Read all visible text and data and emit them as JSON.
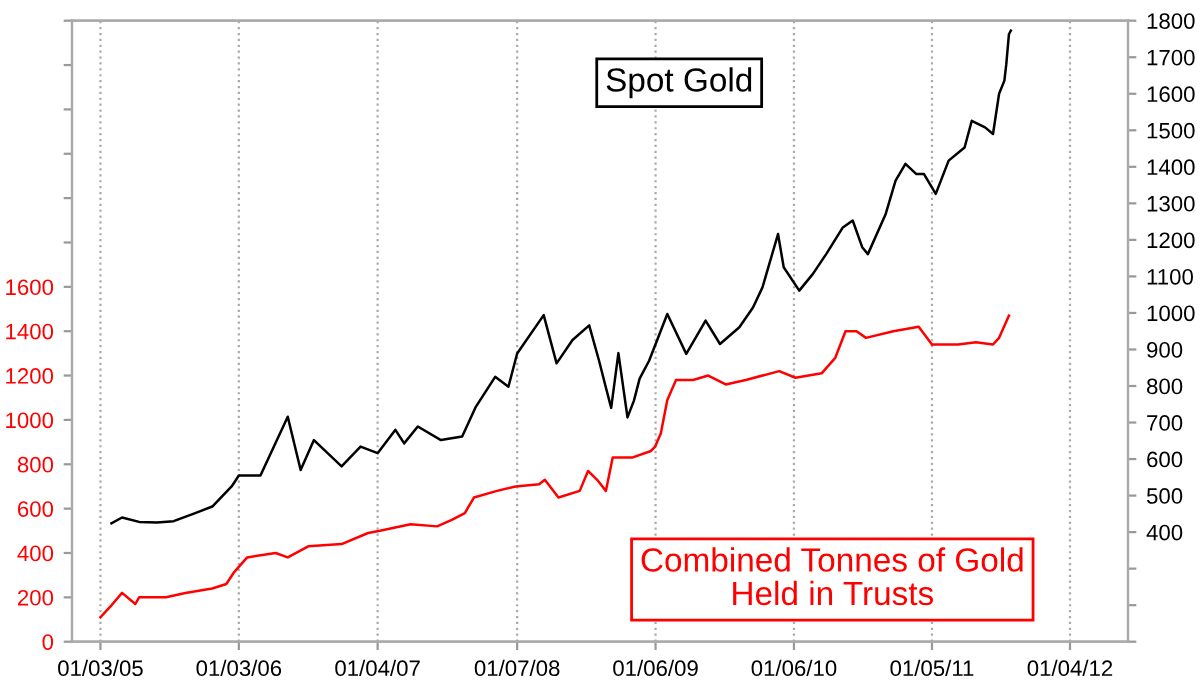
{
  "chart_data": {
    "type": "line",
    "xlim": [
      "2004-10-20",
      "2012-06-05"
    ],
    "xticks": [
      {
        "value": "2005-01-03",
        "label": "01/03/05"
      },
      {
        "value": "2006-01-03",
        "label": "01/03/06"
      },
      {
        "value": "2007-01-04",
        "label": "01/04/07"
      },
      {
        "value": "2008-01-07",
        "label": "01/07/08"
      },
      {
        "value": "2009-01-06",
        "label": "01/06/09"
      },
      {
        "value": "2010-01-06",
        "label": "01/06/10"
      },
      {
        "value": "2011-01-05",
        "label": "01/05/11"
      },
      {
        "value": "2012-01-04",
        "label": "01/04/12"
      }
    ],
    "ylim": [
      0,
      2800
    ],
    "yticks": [
      0,
      200,
      400,
      600,
      800,
      1000,
      1200,
      1400,
      1600,
      {
        "value": 1800,
        "label": null
      },
      {
        "value": 2000,
        "label": null
      },
      {
        "value": 2200,
        "label": null
      },
      {
        "value": 2400,
        "label": null
      },
      {
        "value": 2600,
        "label": null
      },
      {
        "value": 2800,
        "label": null
      }
    ],
    "y2lim": [
      100,
      1800
    ],
    "y2ticks": [
      {
        "value": 100,
        "label": null
      },
      {
        "value": 200,
        "label": null
      },
      {
        "value": 300,
        "label": null
      },
      400,
      500,
      600,
      700,
      800,
      900,
      1000,
      1100,
      1200,
      1300,
      1400,
      1500,
      1600,
      1700,
      1800
    ],
    "grid": "x",
    "marker": "none",
    "line_style": "solid",
    "series": [
      {
        "name": "Spot Gold",
        "color": "#000000",
        "axis": "y2",
        "x": [
          "2005-02-01",
          "2005-03-01",
          "2005-04-15",
          "2005-06-01",
          "2005-07-15",
          "2005-09-10",
          "2005-10-25",
          "2005-12-15",
          "2006-01-03",
          "2006-03-01",
          "2006-05-12",
          "2006-06-15",
          "2006-07-20",
          "2006-10-01",
          "2006-11-20",
          "2007-01-04",
          "2007-02-20",
          "2007-03-15",
          "2007-04-20",
          "2007-06-20",
          "2007-08-15",
          "2007-09-20",
          "2007-11-10",
          "2007-12-15",
          "2008-01-07",
          "2008-03-17",
          "2008-04-20",
          "2008-06-01",
          "2008-07-15",
          "2008-08-10",
          "2008-08-28",
          "2008-09-11",
          "2008-09-30",
          "2008-10-24",
          "2008-11-10",
          "2008-11-25",
          "2008-12-20",
          "2009-02-06",
          "2009-03-28",
          "2009-05-18",
          "2009-06-25",
          "2009-08-15",
          "2009-09-20",
          "2009-10-15",
          "2009-11-25",
          "2009-12-10",
          "2010-01-20",
          "2010-02-25",
          "2010-04-01",
          "2010-05-15",
          "2010-06-10",
          "2010-07-05",
          "2010-07-20",
          "2010-09-05",
          "2010-10-01",
          "2010-10-27",
          "2010-11-25",
          "2010-12-15",
          "2011-01-15",
          "2011-02-18",
          "2011-04-01",
          "2011-04-20",
          "2011-05-25",
          "2011-06-15",
          "2011-07-01",
          "2011-07-15",
          "2011-07-20",
          "2011-07-27",
          "2011-08-01"
        ],
        "values": [
          424,
          440,
          428,
          426,
          430,
          452,
          470,
          525,
          555,
          555,
          716,
          570,
          652,
          580,
          634,
          616,
          680,
          643,
          689,
          652,
          662,
          743,
          825,
          798,
          889,
          994,
          862,
          926,
          966,
          869,
          796,
          740,
          890,
          714,
          760,
          820,
          869,
          997,
          888,
          979,
          915,
          961,
          1015,
          1070,
          1216,
          1125,
          1061,
          1107,
          1161,
          1234,
          1253,
          1180,
          1161,
          1271,
          1362,
          1408,
          1380,
          1380,
          1326,
          1417,
          1453,
          1526,
          1508,
          1490,
          1600,
          1636,
          1681,
          1763,
          1773
        ]
      },
      {
        "name": "Combined Tonnes of Gold\nHeld in Trusts",
        "color": "#ff0000",
        "axis": "y",
        "x": [
          "2005-01-03",
          "2005-01-30",
          "2005-03-01",
          "2005-04-05",
          "2005-04-15",
          "2005-06-25",
          "2005-08-15",
          "2005-10-25",
          "2005-12-01",
          "2005-12-20",
          "2006-01-25",
          "2006-04-10",
          "2006-05-12",
          "2006-07-05",
          "2006-10-01",
          "2006-12-10",
          "2007-01-10",
          "2007-04-01",
          "2007-06-10",
          "2007-07-20",
          "2007-08-22",
          "2007-09-15",
          "2007-11-15",
          "2008-01-03",
          "2008-03-05",
          "2008-03-20",
          "2008-04-25",
          "2008-06-20",
          "2008-07-12",
          "2008-08-05",
          "2008-08-28",
          "2008-09-15",
          "2008-11-05",
          "2008-12-25",
          "2009-01-05",
          "2009-01-20",
          "2009-02-06",
          "2009-03-01",
          "2009-04-15",
          "2009-05-25",
          "2009-07-10",
          "2009-09-01",
          "2009-11-28",
          "2010-01-10",
          "2010-03-20",
          "2010-04-25",
          "2010-05-22",
          "2010-06-20",
          "2010-07-15",
          "2010-09-25",
          "2010-12-01",
          "2011-01-05",
          "2011-03-15",
          "2011-05-01",
          "2011-06-15",
          "2011-07-01",
          "2011-07-27"
        ],
        "values": [
          110,
          160,
          220,
          170,
          200,
          200,
          220,
          240,
          260,
          310,
          380,
          400,
          380,
          430,
          440,
          490,
          500,
          530,
          520,
          550,
          580,
          650,
          680,
          700,
          710,
          730,
          650,
          680,
          770,
          730,
          680,
          830,
          830,
          860,
          880,
          940,
          1090,
          1180,
          1180,
          1200,
          1160,
          1180,
          1220,
          1190,
          1210,
          1280,
          1400,
          1400,
          1370,
          1400,
          1420,
          1340,
          1340,
          1350,
          1340,
          1370,
          1470
        ]
      }
    ]
  }
}
